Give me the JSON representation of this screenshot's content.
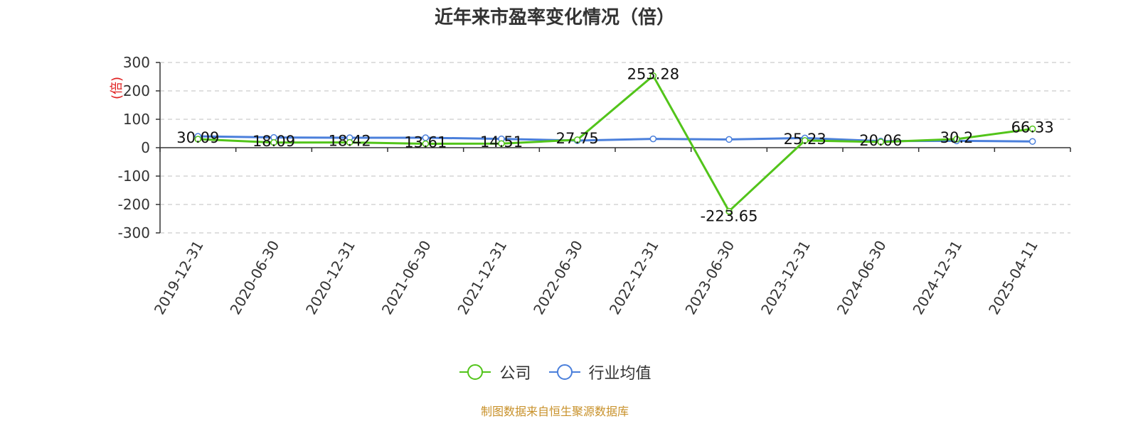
{
  "chart_data": {
    "type": "line",
    "title": "近年来市盈率变化情况（倍）",
    "ylabel": "(倍)",
    "xlabel": "",
    "ylim": [
      -300,
      300
    ],
    "yticks": [
      "300",
      "200",
      "100",
      "0",
      "-100",
      "-200",
      "-300"
    ],
    "categories": [
      "2019-12-31",
      "2020-06-30",
      "2020-12-31",
      "2021-06-30",
      "2021-12-31",
      "2022-06-30",
      "2022-12-31",
      "2023-06-30",
      "2023-12-31",
      "2024-06-30",
      "2024-12-31",
      "2025-04-11"
    ],
    "grid": true,
    "legend_position": "bottom",
    "series": [
      {
        "name": "公司",
        "color": "#52c41a",
        "values": [
          30.09,
          18.09,
          18.42,
          13.61,
          14.51,
          27.75,
          253.28,
          -223.65,
          25.23,
          20.06,
          30.2,
          66.33
        ],
        "labels": [
          "30.09",
          "18.09",
          "18.42",
          "13.61",
          "14.51",
          "27.75",
          "253.28",
          "-223.65",
          "25.23",
          "20.06",
          "30.2",
          "66.33"
        ]
      },
      {
        "name": "行业均值",
        "color": "#4a7fdb",
        "values": [
          40,
          36,
          35,
          35,
          31,
          25,
          31,
          29,
          34,
          23,
          24,
          22
        ]
      }
    ],
    "source_note": "制图数据来自恒生聚源数据库"
  }
}
